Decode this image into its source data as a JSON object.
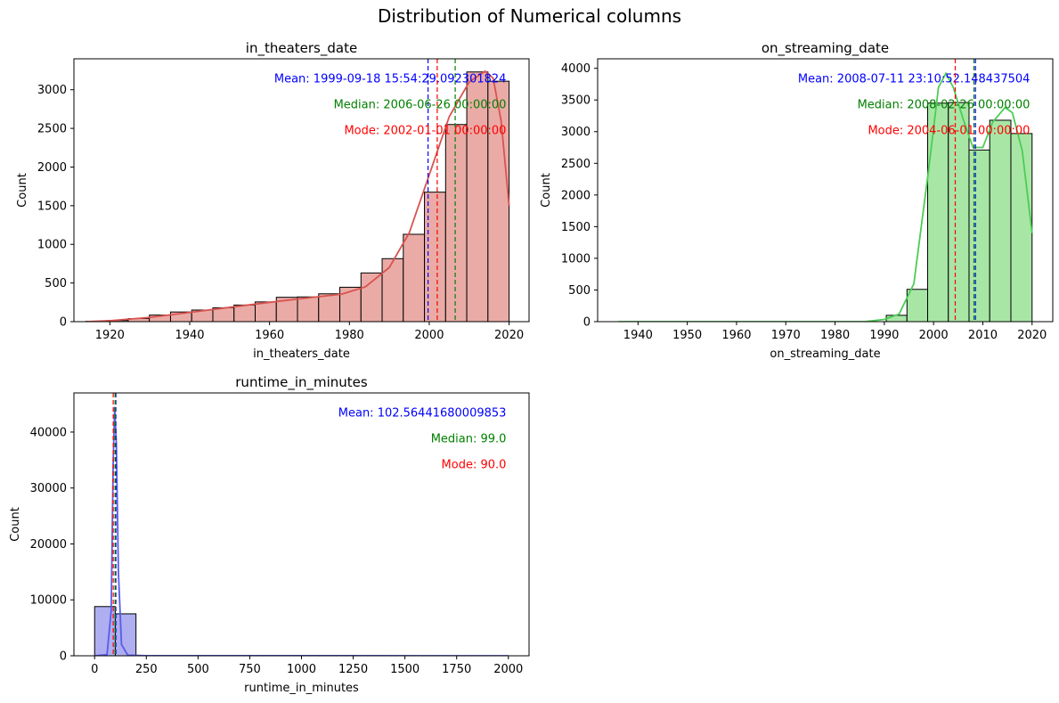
{
  "figure_title": "Distribution of Numerical columns",
  "chart_data": [
    {
      "type": "bar",
      "title": "in_theaters_date",
      "xlabel": "in_theaters_date",
      "ylabel": "Count",
      "xlim": [
        1911.0,
        2025.0
      ],
      "ylim": [
        0,
        3400
      ],
      "xticks": [
        1920,
        1940,
        1960,
        1980,
        2000,
        2020
      ],
      "yticks": [
        0,
        500,
        1000,
        1500,
        2000,
        2500,
        3000
      ],
      "bin_edges": [
        1914.0,
        1919.3,
        1924.6,
        1929.9,
        1935.2,
        1940.5,
        1945.8,
        1951.1,
        1956.4,
        1961.7,
        1967.0,
        1972.3,
        1977.6,
        1982.9,
        1988.2,
        1993.5,
        1998.8,
        2004.1,
        2009.4,
        2014.7,
        2020.0
      ],
      "values": [
        5,
        15,
        40,
        85,
        125,
        150,
        180,
        215,
        255,
        315,
        320,
        360,
        445,
        630,
        815,
        1130,
        1675,
        2550,
        3230,
        3110
      ],
      "kde": [
        [
          1914,
          0
        ],
        [
          1920,
          12
        ],
        [
          1930,
          55
        ],
        [
          1940,
          120
        ],
        [
          1950,
          185
        ],
        [
          1960,
          250
        ],
        [
          1970,
          310
        ],
        [
          1978,
          355
        ],
        [
          1984,
          450
        ],
        [
          1990,
          700
        ],
        [
          1995,
          1150
        ],
        [
          2000,
          1900
        ],
        [
          2005,
          2650
        ],
        [
          2010,
          3100
        ],
        [
          2014,
          3240
        ],
        [
          2016,
          3150
        ],
        [
          2018,
          2600
        ],
        [
          2020,
          1500
        ]
      ],
      "bar_color": "#eaaba6",
      "line_color": "#d9534f",
      "stats": {
        "mean": {
          "label": "Mean: 1999-09-18 15:54:29.092301824",
          "x": 1999.7,
          "color": "#0000ff"
        },
        "median": {
          "label": "Median: 2006-06-26 00:00:00",
          "x": 2006.5,
          "color": "#008000"
        },
        "mode": {
          "label": "Mode: 2002-01-01 00:00:00",
          "x": 2002.0,
          "color": "#ff0000"
        }
      }
    },
    {
      "type": "bar",
      "title": "on_streaming_date",
      "xlabel": "on_streaming_date",
      "ylabel": "Count",
      "xlim": [
        1931.8,
        2024.2
      ],
      "ylim": [
        0,
        4150
      ],
      "xticks": [
        1940,
        1950,
        1960,
        1970,
        1980,
        1990,
        2000,
        2010,
        2020
      ],
      "yticks": [
        0,
        500,
        1000,
        1500,
        2000,
        2500,
        3000,
        3500,
        4000
      ],
      "bin_edges": [
        1990.4,
        1994.6,
        1998.8,
        2003.0,
        2007.2,
        2011.4,
        2015.7,
        2020.0
      ],
      "values": [
        100,
        510,
        3450,
        3460,
        2710,
        3180,
        2970
      ],
      "kde": [
        [
          1936,
          0
        ],
        [
          1986,
          0
        ],
        [
          1990,
          35
        ],
        [
          1993,
          120
        ],
        [
          1996,
          600
        ],
        [
          1999,
          2400
        ],
        [
          2001,
          3700
        ],
        [
          2002.5,
          3920
        ],
        [
          2004,
          3700
        ],
        [
          2006,
          3200
        ],
        [
          2008,
          2750
        ],
        [
          2010,
          2750
        ],
        [
          2012,
          3150
        ],
        [
          2014.5,
          3380
        ],
        [
          2016,
          3300
        ],
        [
          2018,
          2700
        ],
        [
          2020,
          1400
        ]
      ],
      "bar_color": "#a8e6a6",
      "line_color": "#4ccc55",
      "stats": {
        "mean": {
          "label": "Mean: 2008-07-11 23:10:52.148437504",
          "x": 2008.5,
          "color": "#0000ff"
        },
        "median": {
          "label": "Median: 2008-02-26 00:00:00",
          "x": 2008.2,
          "color": "#008000"
        },
        "mode": {
          "label": "Mode: 2004-06-01 00:00:00",
          "x": 2004.4,
          "color": "#ff0000"
        }
      }
    },
    {
      "type": "bar",
      "title": "runtime_in_minutes",
      "xlabel": "runtime_in_minutes",
      "ylabel": "Count",
      "xlim": [
        -100,
        2100
      ],
      "ylim": [
        0,
        47000
      ],
      "xticks": [
        0,
        250,
        500,
        750,
        1000,
        1250,
        1500,
        1750,
        2000
      ],
      "yticks": [
        0,
        10000,
        20000,
        30000,
        40000
      ],
      "bin_edges": [
        0,
        100,
        200,
        300,
        400,
        500,
        600,
        700,
        800,
        900,
        1000,
        1100,
        1200,
        1300,
        1400,
        1500,
        1600,
        1700,
        1800,
        1900,
        2000
      ],
      "values": [
        8800,
        7500,
        40,
        10,
        5,
        2,
        1,
        0,
        0,
        0,
        0,
        0,
        0,
        0,
        0,
        0,
        0,
        0,
        0,
        0
      ],
      "kde": [
        [
          0,
          0
        ],
        [
          60,
          200
        ],
        [
          80,
          8000
        ],
        [
          90,
          35000
        ],
        [
          97,
          44500
        ],
        [
          105,
          38000
        ],
        [
          115,
          15000
        ],
        [
          130,
          2000
        ],
        [
          160,
          120
        ],
        [
          250,
          20
        ],
        [
          2000,
          0
        ]
      ],
      "bar_color": "#aeaef0",
      "line_color": "#5b5be6",
      "stats": {
        "mean": {
          "label": "Mean: 102.56441680009853",
          "x": 102.56,
          "color": "#0000ff"
        },
        "median": {
          "label": "Median: 99.0",
          "x": 99.0,
          "color": "#008000"
        },
        "mode": {
          "label": "Mode: 90.0",
          "x": 90.0,
          "color": "#ff0000"
        }
      }
    }
  ]
}
